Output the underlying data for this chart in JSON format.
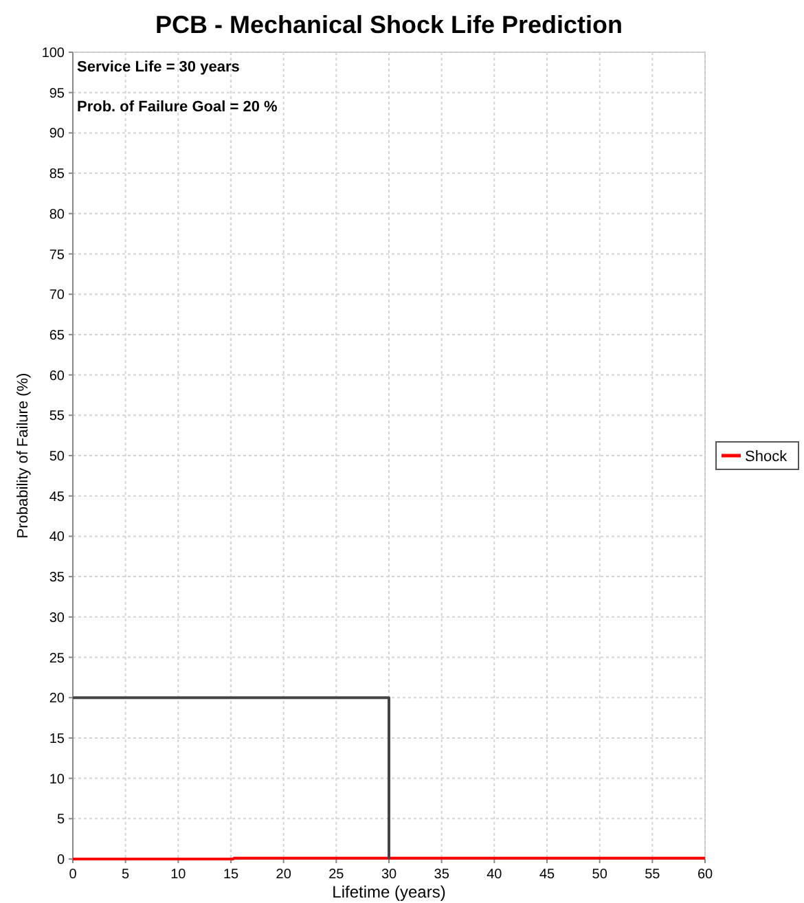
{
  "chart_data": {
    "type": "line",
    "title": "PCB - Mechanical Shock Life Prediction",
    "xlabel": "Lifetime (years)",
    "ylabel": "Probability of Failure (%)",
    "xlim": [
      0,
      60
    ],
    "xticks": [
      0,
      5,
      10,
      15,
      20,
      25,
      30,
      35,
      40,
      45,
      50,
      55,
      60
    ],
    "ylim": [
      0,
      100
    ],
    "yticks": [
      0,
      5,
      10,
      15,
      20,
      25,
      30,
      35,
      40,
      45,
      50,
      55,
      60,
      65,
      70,
      75,
      80,
      85,
      90,
      95,
      100
    ],
    "grid": true,
    "legend": "right",
    "annotations": [
      "Service Life = 30 years",
      "Prob. of Failure Goal = 20 %"
    ],
    "series": [
      {
        "name": "Shock",
        "color": "#ff0000",
        "x": [
          0,
          15.2,
          15.3,
          60
        ],
        "values": [
          0,
          0,
          0.1,
          0.1
        ]
      },
      {
        "color": "#444444",
        "x": [
          0,
          30,
          30
        ],
        "values": [
          20,
          20,
          0
        ]
      }
    ]
  }
}
